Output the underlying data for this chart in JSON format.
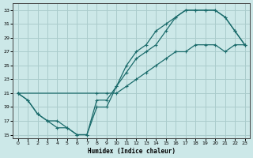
{
  "xlabel": "Humidex (Indice chaleur)",
  "bg_color": "#cce8e8",
  "grid_color": "#aacccc",
  "line_color": "#1a6b6b",
  "xlim": [
    -0.5,
    23.5
  ],
  "ylim": [
    14.5,
    34
  ],
  "xticks": [
    0,
    1,
    2,
    3,
    4,
    5,
    6,
    7,
    8,
    9,
    10,
    11,
    12,
    13,
    14,
    15,
    16,
    17,
    18,
    19,
    20,
    21,
    22,
    23
  ],
  "yticks": [
    15,
    17,
    19,
    21,
    23,
    25,
    27,
    29,
    31,
    33
  ],
  "line1_x": [
    0,
    1,
    2,
    3,
    4,
    5,
    6,
    7,
    8,
    9,
    10,
    11,
    12,
    13,
    14,
    15,
    16,
    17,
    18,
    19,
    20,
    21,
    22,
    23
  ],
  "line1_y": [
    21,
    20,
    18,
    17,
    16,
    16,
    15,
    15,
    19,
    19,
    22,
    24,
    26,
    27,
    28,
    30,
    32,
    33,
    33,
    33,
    33,
    32,
    30,
    28
  ],
  "line2_x": [
    0,
    1,
    2,
    3,
    4,
    5,
    6,
    7,
    8,
    9,
    10,
    11,
    12,
    13,
    14,
    15,
    16,
    17,
    18,
    19,
    20,
    21,
    22,
    23
  ],
  "line2_y": [
    21,
    20,
    18,
    17,
    17,
    16,
    15,
    15,
    20,
    20,
    22,
    25,
    27,
    28,
    30,
    31,
    32,
    33,
    33,
    33,
    33,
    32,
    30,
    28
  ],
  "line3_x": [
    0,
    8,
    9,
    10,
    11,
    12,
    13,
    14,
    15,
    16,
    17,
    18,
    19,
    20,
    21,
    22,
    23
  ],
  "line3_y": [
    21,
    21,
    21,
    21,
    22,
    23,
    24,
    25,
    26,
    27,
    27,
    28,
    28,
    28,
    27,
    28,
    28
  ]
}
